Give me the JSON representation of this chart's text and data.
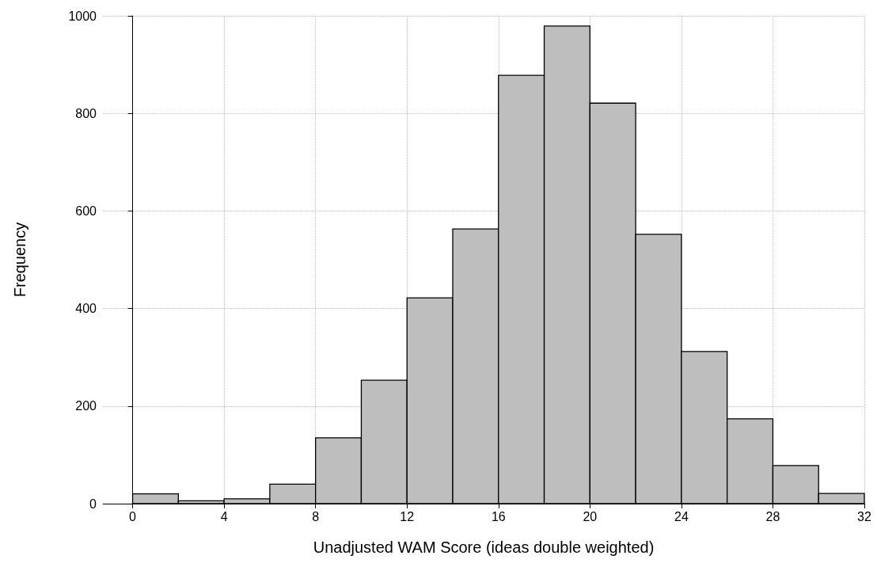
{
  "chart_data": {
    "type": "histogram",
    "xlabel": "Unadjusted WAM Score (ideas double weighted)",
    "ylabel": "Frequency",
    "bins": [
      0,
      2,
      4,
      6,
      8,
      10,
      12,
      14,
      16,
      18,
      20,
      22,
      24,
      26,
      28,
      30,
      32
    ],
    "values": [
      20,
      6,
      10,
      40,
      135,
      253,
      422,
      563,
      878,
      979,
      821,
      552,
      312,
      174,
      78,
      21
    ],
    "color": "#bebebe",
    "xlim": [
      -1.3,
      32
    ],
    "xticks": [
      0,
      4,
      8,
      12,
      16,
      20,
      24,
      28,
      32
    ],
    "ylim": [
      0,
      1000
    ],
    "yticks": [
      0,
      200,
      400,
      600,
      800,
      1000
    ],
    "grid": true
  }
}
